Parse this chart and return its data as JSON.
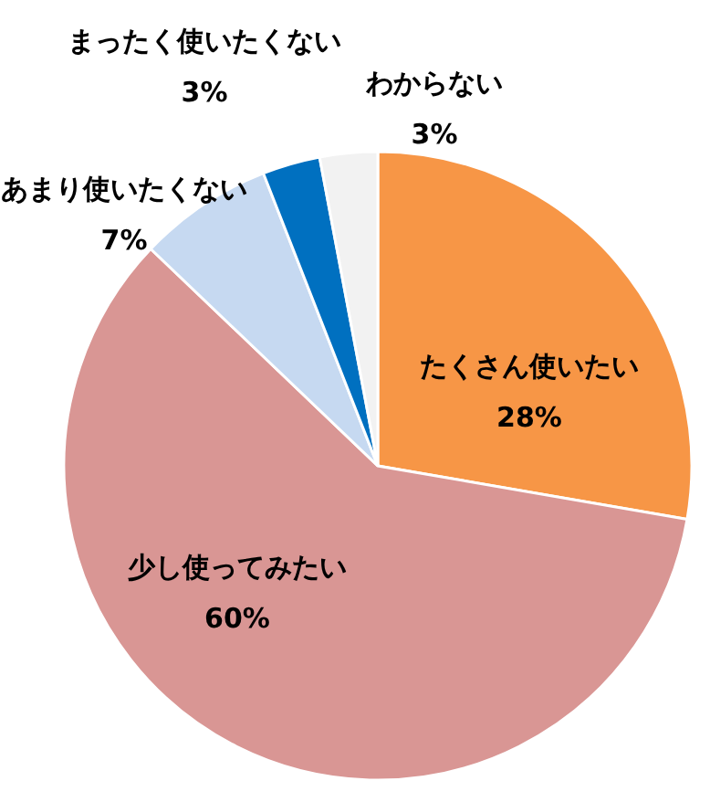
{
  "chart_data": {
    "type": "pie",
    "categories": [
      "たくさん使いたい",
      "少し使ってみたい",
      "あまり使いたくない",
      "まったく使いたくない",
      "わからない"
    ],
    "values": [
      28,
      60,
      7,
      3,
      3
    ],
    "colors": [
      "#f79646",
      "#d99694",
      "#c6d9f1",
      "#0070c0",
      "#f2f2f2"
    ],
    "value_labels": [
      "28%",
      "60%",
      "7%",
      "3%",
      "3%"
    ]
  }
}
